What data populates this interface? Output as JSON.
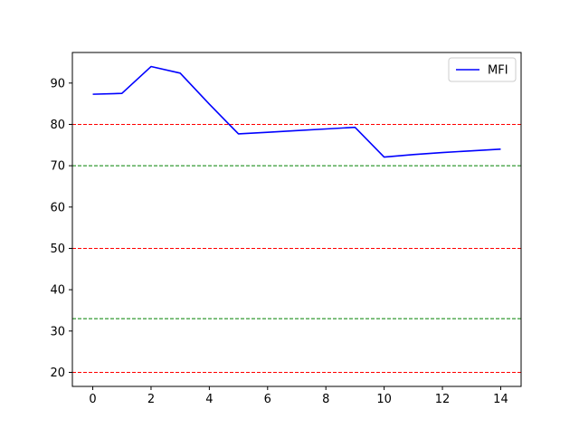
{
  "chart_data": {
    "type": "line",
    "title": "",
    "xlabel": "",
    "ylabel": "",
    "xlim": [
      -0.7,
      14.7
    ],
    "ylim": [
      16.6,
      97.4
    ],
    "xticks": [
      0,
      2,
      4,
      6,
      8,
      10,
      12,
      14
    ],
    "yticks": [
      20,
      30,
      40,
      50,
      60,
      70,
      80,
      90
    ],
    "grid": false,
    "legend": "top-right",
    "series": [
      {
        "name": "MFI",
        "color": "#0000ff",
        "x": [
          0,
          1,
          2,
          3,
          4,
          5,
          6,
          7,
          8,
          9,
          10,
          11,
          12,
          13,
          14
        ],
        "values": [
          87.3,
          87.5,
          94.0,
          92.4,
          84.9,
          77.7,
          78.1,
          78.5,
          78.9,
          79.3,
          72.1,
          72.7,
          73.2,
          73.6,
          74.0
        ]
      }
    ],
    "reference_lines": [
      {
        "y": 80,
        "color": "#ff0000",
        "style": "dashed"
      },
      {
        "y": 70,
        "color": "#008000",
        "style": "dashed"
      },
      {
        "y": 50,
        "color": "#ff0000",
        "style": "dashed"
      },
      {
        "y": 33,
        "color": "#008000",
        "style": "dashed"
      },
      {
        "y": 20,
        "color": "#ff0000",
        "style": "dashed"
      }
    ]
  }
}
